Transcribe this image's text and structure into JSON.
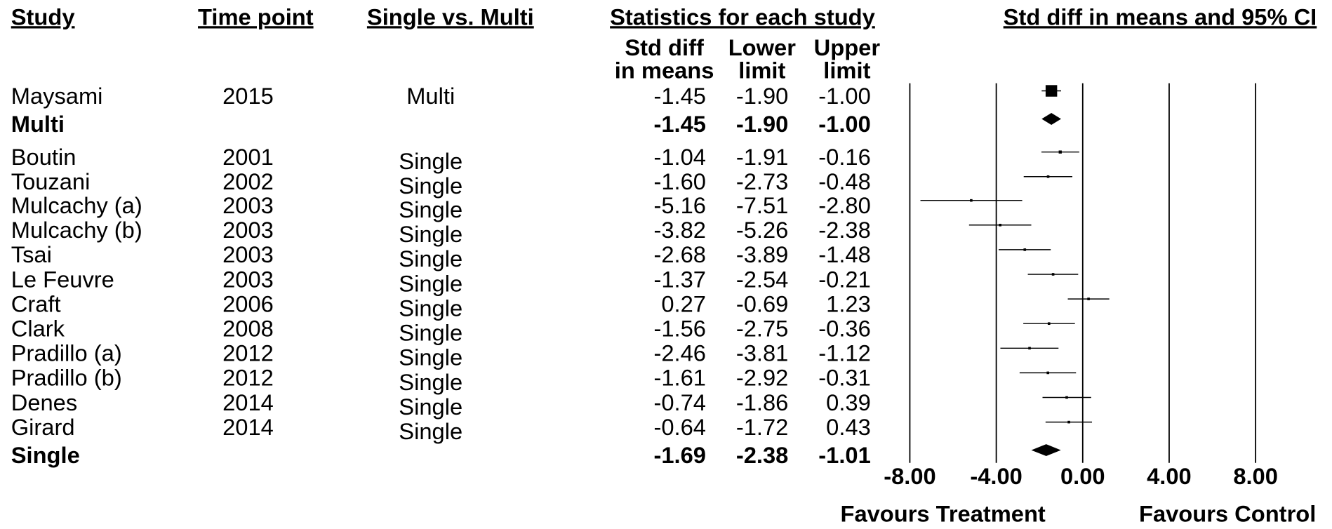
{
  "chart_data": {
    "type": "forest",
    "title": "Std diff in means and 95% CI",
    "columns": [
      "Study",
      "Time point",
      "Single vs. Multi",
      "Statistics for each study"
    ],
    "stat_headers": [
      [
        "Std diff",
        "in means"
      ],
      [
        "Lower",
        "limit"
      ],
      [
        "Upper",
        "limit"
      ]
    ],
    "studies": [
      "Maysami",
      "Multi",
      "Boutin",
      "Touzani",
      "Mulcachy (a)",
      "Mulcachy (b)",
      "Tsai",
      "Le Feuvre",
      "Craft",
      "Clark",
      "Pradillo (a)",
      "Pradillo (b)",
      "Denes",
      "Girard",
      "Single"
    ],
    "years": [
      "2015",
      null,
      "2001",
      "2002",
      "2003",
      "2003",
      "2003",
      "2003",
      "2006",
      "2008",
      "2012",
      "2012",
      "2014",
      "2014",
      null
    ],
    "groups": [
      "Multi",
      null,
      "Single",
      "Single",
      "Single",
      "Single",
      "Single",
      "Single",
      "Single",
      "Single",
      "Single",
      "Single",
      "Single",
      "Single",
      null
    ],
    "pooled": [
      false,
      true,
      false,
      false,
      false,
      false,
      false,
      false,
      false,
      false,
      false,
      false,
      false,
      false,
      true
    ],
    "values": [
      -1.45,
      -1.45,
      -1.04,
      -1.6,
      -5.16,
      -3.82,
      -2.68,
      -1.37,
      0.27,
      -1.56,
      -2.46,
      -1.61,
      -0.74,
      -0.64,
      -1.69
    ],
    "value_labels": [
      "-1.45",
      "-1.45",
      "-1.04",
      "-1.60",
      "-5.16",
      "-3.82",
      "-2.68",
      "-1.37",
      "0.27",
      "-1.56",
      "-2.46",
      "-1.61",
      "-0.74",
      "-0.64",
      "-1.69"
    ],
    "lower": [
      -1.9,
      -1.9,
      -1.91,
      -2.73,
      -7.51,
      -5.26,
      -3.89,
      -2.54,
      -0.69,
      -2.75,
      -3.81,
      -2.92,
      -1.86,
      -1.72,
      -2.38
    ],
    "lower_labels": [
      "-1.90",
      "-1.90",
      "-1.91",
      "-2.73",
      "-7.51",
      "-5.26",
      "-3.89",
      "-2.54",
      "-0.69",
      "-2.75",
      "-3.81",
      "-2.92",
      "-1.86",
      "-1.72",
      "-2.38"
    ],
    "upper": [
      -1.0,
      -1.0,
      -0.16,
      -0.48,
      -2.8,
      -2.38,
      -1.48,
      -0.21,
      1.23,
      -0.36,
      -1.12,
      -0.31,
      0.39,
      0.43,
      -1.01
    ],
    "upper_labels": [
      "-1.00",
      "-1.00",
      "-0.16",
      "-0.48",
      "-2.80",
      "-2.38",
      "-1.48",
      "-0.21",
      "1.23",
      "-0.36",
      "-1.12",
      "-0.31",
      "0.39",
      "0.43",
      "-1.01"
    ],
    "xlim": [
      -8,
      8
    ],
    "xticks": [
      {
        "value": -8,
        "label": "-8.00"
      },
      {
        "value": -4,
        "label": "-4.00"
      },
      {
        "value": 0,
        "label": "0.00"
      },
      {
        "value": 4,
        "label": "4.00"
      },
      {
        "value": 8,
        "label": "8.00"
      }
    ],
    "grid": true,
    "color": "#000000",
    "annotations": [
      "Favours Treatment",
      "Favours Control"
    ]
  }
}
